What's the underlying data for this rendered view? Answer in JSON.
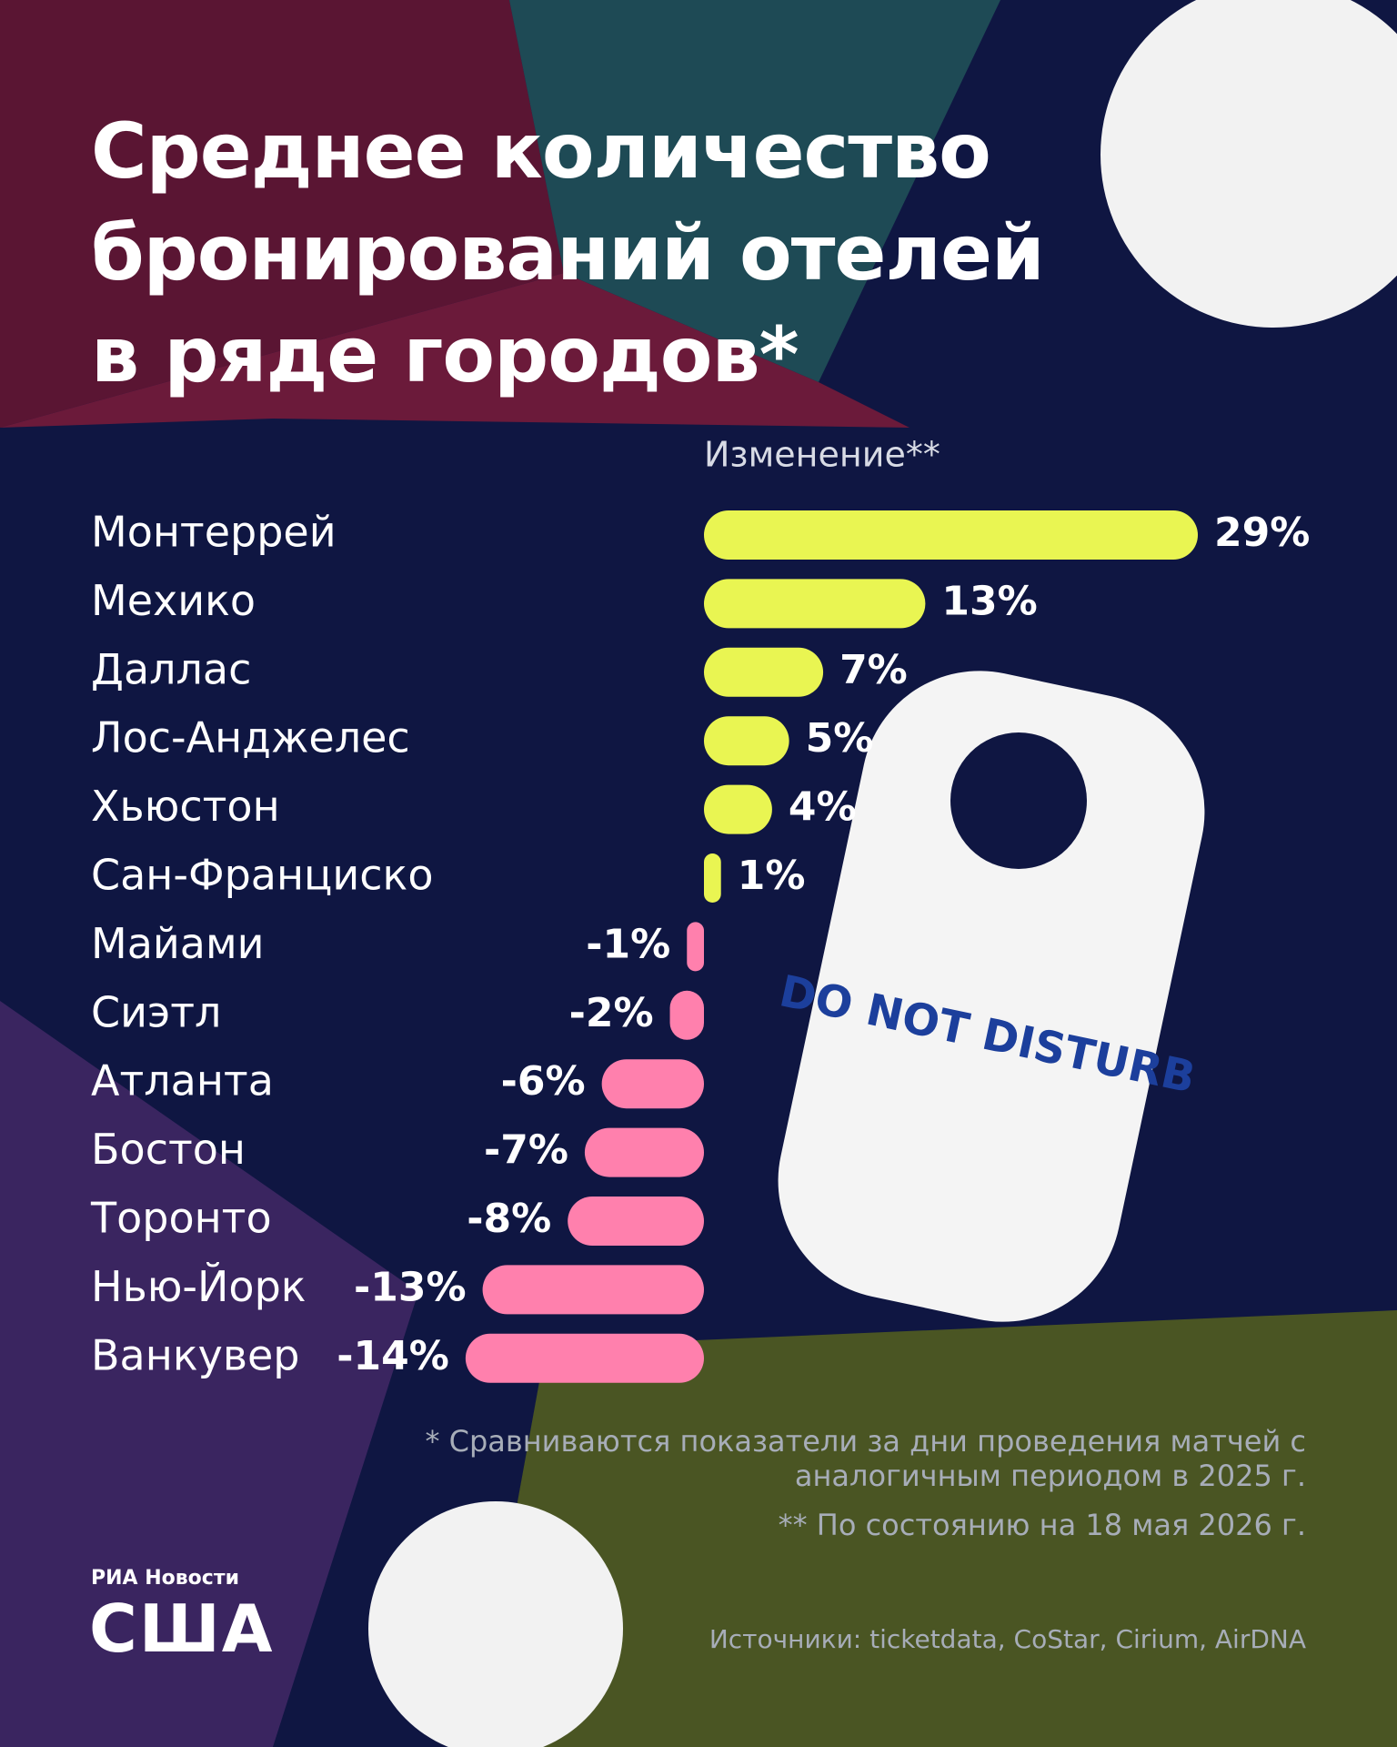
{
  "chart_data": {
    "type": "bar",
    "orientation": "horizontal",
    "title": "Среднее количество бронирований отелей в ряде городов*",
    "subtitle": "Изменение**",
    "categories": [
      "Монтеррей",
      "Мехико",
      "Даллас",
      "Лос-Анджелес",
      "Хьюстон",
      "Сан-Франциско",
      "Майами",
      "Сиэтл",
      "Атланта",
      "Бостон",
      "Торонто",
      "Нью-Йорк",
      "Ванкувер"
    ],
    "values": [
      29,
      13,
      7,
      5,
      4,
      1,
      -1,
      -2,
      -6,
      -7,
      -8,
      -13,
      -14
    ],
    "value_labels": [
      "29%",
      "13%",
      "7%",
      "5%",
      "4%",
      "1%",
      "-1%",
      "-2%",
      "-6%",
      "-7%",
      "-8%",
      "-13%",
      "-14%"
    ],
    "positive_color": "#e9f552",
    "negative_color": "#ff80ad",
    "notes": [
      "* Сравниваются показатели за дни проведения матчей с аналогичным периодом в 2025 г.",
      "** По состоянию на 18 мая 2026 г."
    ],
    "source": "Источники: ticketdata, CoStar, Cirium, AirDNA"
  },
  "branding": {
    "agency": "РИА Новости",
    "section": "США"
  }
}
